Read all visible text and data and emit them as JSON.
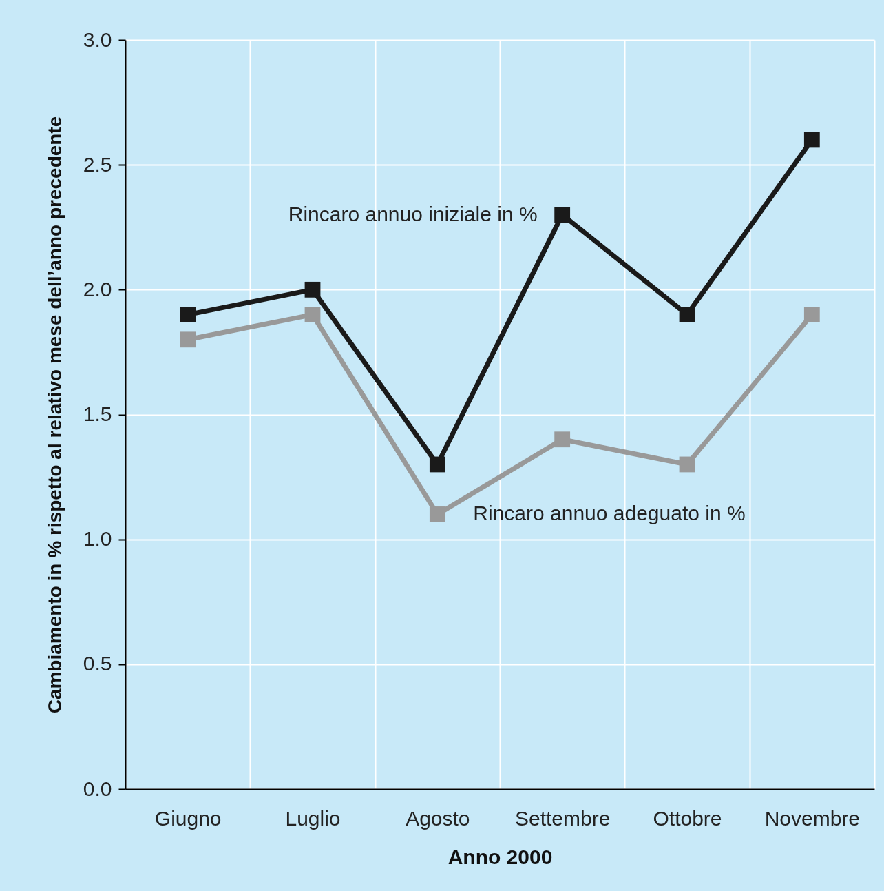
{
  "chart_data": {
    "type": "line",
    "xlabel": "Anno 2000",
    "ylabel": "Cambiamento in % rispetto al relativo mese dell’anno precedente",
    "categories": [
      "Giugno",
      "Luglio",
      "Agosto",
      "Settembre",
      "Ottobre",
      "Novembre"
    ],
    "series": [
      {
        "name": "Rincaro annuo iniziale in %",
        "color": "#1a1a1a",
        "values": [
          1.9,
          2.0,
          1.3,
          2.3,
          1.9,
          2.6
        ]
      },
      {
        "name": "Rincaro annuo adeguato in %",
        "color": "#999999",
        "values": [
          1.8,
          1.9,
          1.1,
          1.4,
          1.3,
          1.9
        ]
      }
    ],
    "ylim": [
      0,
      3
    ],
    "yticks": [
      {
        "value": 0,
        "label": "0.0"
      },
      {
        "value": 0.5,
        "label": "0.5"
      },
      {
        "value": 1,
        "label": "1.0"
      },
      {
        "value": 1.5,
        "label": "1.5"
      },
      {
        "value": 2,
        "label": "2.0"
      },
      {
        "value": 2.5,
        "label": "2.5"
      },
      {
        "value": 3,
        "label": "3.0"
      }
    ],
    "grid": true,
    "marker": "square",
    "line_style": "solid"
  }
}
